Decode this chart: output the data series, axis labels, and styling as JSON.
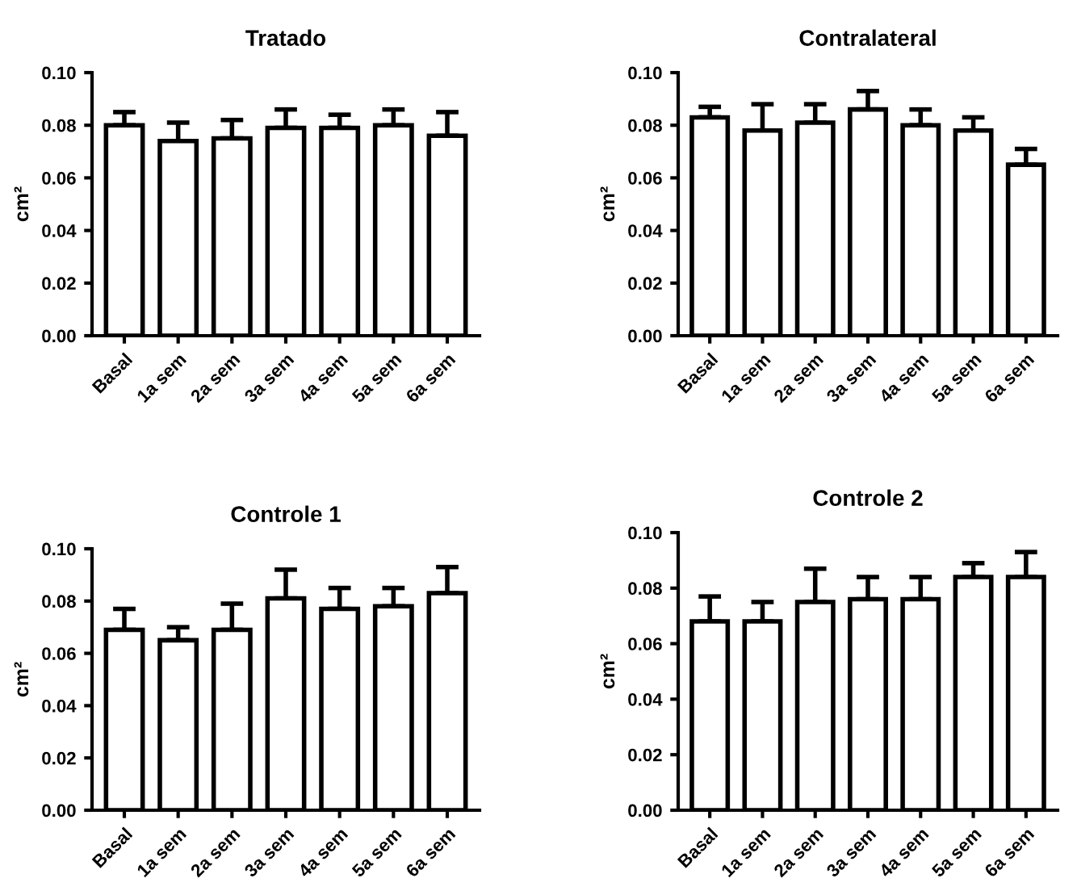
{
  "chart_data": [
    {
      "type": "bar",
      "title": "Tratado",
      "ylabel": "cm²",
      "categories": [
        "Basal",
        "1a sem",
        "2a sem",
        "3a sem",
        "4a sem",
        "5a sem",
        "6a sem"
      ],
      "values": [
        0.08,
        0.074,
        0.075,
        0.079,
        0.079,
        0.08,
        0.076
      ],
      "errors": [
        [
          0.08,
          0.085
        ],
        [
          0.074,
          0.081
        ],
        [
          0.075,
          0.082
        ],
        [
          0.079,
          0.086
        ],
        [
          0.079,
          0.084
        ],
        [
          0.08,
          0.086
        ],
        [
          0.076,
          0.085
        ]
      ],
      "color": "#ffffff",
      "ylim": [
        0,
        0.1
      ],
      "yticks": [
        {
          "value": 0,
          "label": "0.00"
        },
        {
          "value": 0.02,
          "label": "0.02"
        },
        {
          "value": 0.04,
          "label": "0.04"
        },
        {
          "value": 0.06,
          "label": "0.06"
        },
        {
          "value": 0.08,
          "label": "0.08"
        },
        {
          "value": 0.1,
          "label": "0.10"
        }
      ]
    },
    {
      "type": "bar",
      "title": "Contralateral",
      "ylabel": "cm²",
      "categories": [
        "Basal",
        "1a sem",
        "2a sem",
        "3a sem",
        "4a sem",
        "5a sem",
        "6a sem"
      ],
      "values": [
        0.083,
        0.078,
        0.081,
        0.086,
        0.08,
        0.078,
        0.065
      ],
      "errors": [
        [
          0.083,
          0.087
        ],
        [
          0.078,
          0.088
        ],
        [
          0.081,
          0.088
        ],
        [
          0.086,
          0.093
        ],
        [
          0.08,
          0.086
        ],
        [
          0.078,
          0.083
        ],
        [
          0.065,
          0.071
        ]
      ],
      "color": "#ffffff",
      "ylim": [
        0,
        0.1
      ],
      "yticks": [
        {
          "value": 0,
          "label": "0.00"
        },
        {
          "value": 0.02,
          "label": "0.02"
        },
        {
          "value": 0.04,
          "label": "0.04"
        },
        {
          "value": 0.06,
          "label": "0.06"
        },
        {
          "value": 0.08,
          "label": "0.08"
        },
        {
          "value": 0.1,
          "label": "0.10"
        }
      ]
    },
    {
      "type": "bar",
      "title": "Controle 1",
      "ylabel": "cm²",
      "categories": [
        "Basal",
        "1a sem",
        "2a sem",
        "3a sem",
        "4a sem",
        "5a sem",
        "6a sem"
      ],
      "values": [
        0.069,
        0.065,
        0.069,
        0.081,
        0.077,
        0.078,
        0.083
      ],
      "errors": [
        [
          0.069,
          0.077
        ],
        [
          0.065,
          0.07
        ],
        [
          0.069,
          0.079
        ],
        [
          0.081,
          0.092
        ],
        [
          0.077,
          0.085
        ],
        [
          0.078,
          0.085
        ],
        [
          0.083,
          0.093
        ]
      ],
      "color": "#ffffff",
      "ylim": [
        0,
        0.1
      ],
      "yticks": [
        {
          "value": 0,
          "label": "0.00"
        },
        {
          "value": 0.02,
          "label": "0.02"
        },
        {
          "value": 0.04,
          "label": "0.04"
        },
        {
          "value": 0.06,
          "label": "0.06"
        },
        {
          "value": 0.08,
          "label": "0.08"
        },
        {
          "value": 0.1,
          "label": "0.10"
        }
      ]
    },
    {
      "type": "bar",
      "title": "Controle 2",
      "ylabel": "cm²",
      "categories": [
        "Basal",
        "1a sem",
        "2a sem",
        "3a sem",
        "4a sem",
        "5a sem",
        "6a sem"
      ],
      "values": [
        0.068,
        0.068,
        0.075,
        0.076,
        0.076,
        0.084,
        0.084
      ],
      "errors": [
        [
          0.068,
          0.077
        ],
        [
          0.068,
          0.075
        ],
        [
          0.075,
          0.087
        ],
        [
          0.076,
          0.084
        ],
        [
          0.076,
          0.084
        ],
        [
          0.084,
          0.089
        ],
        [
          0.084,
          0.093
        ]
      ],
      "color": "#ffffff",
      "ylim": [
        0,
        0.1
      ],
      "yticks": [
        {
          "value": 0,
          "label": "0.00"
        },
        {
          "value": 0.02,
          "label": "0.02"
        },
        {
          "value": 0.04,
          "label": "0.04"
        },
        {
          "value": 0.06,
          "label": "0.06"
        },
        {
          "value": 0.08,
          "label": "0.08"
        },
        {
          "value": 0.1,
          "label": "0.10"
        }
      ]
    }
  ]
}
